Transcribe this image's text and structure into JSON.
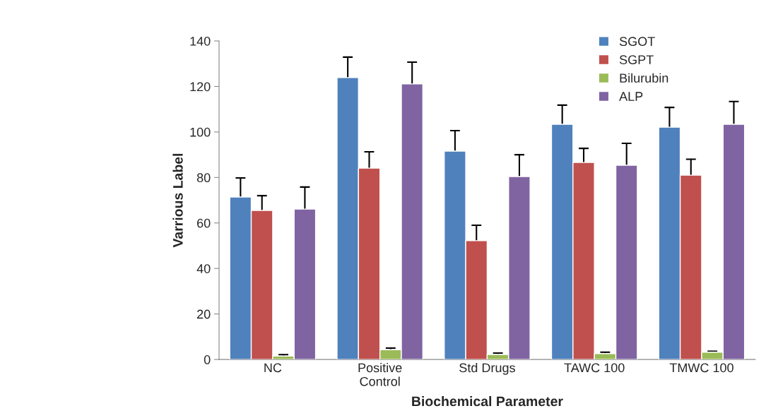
{
  "chart_data": {
    "type": "bar",
    "xlabel": "Biochemical Parameter",
    "ylabel": "Varrious Label",
    "categories": [
      "NC",
      "Positive\nControl",
      "Std Drugs",
      "TAWC 100",
      "TMWC 100"
    ],
    "series": [
      {
        "name": "SGOT",
        "color": "#4f81bd",
        "values": [
          71.4,
          123.9,
          91.6,
          103.4,
          102.1
        ],
        "errors": [
          8.4,
          9,
          9,
          8.4,
          8.7
        ]
      },
      {
        "name": "SGPT",
        "color": "#c0504d",
        "values": [
          65.5,
          84.1,
          52.2,
          86.6,
          81
        ],
        "errors": [
          6.5,
          7.2,
          6.8,
          6.2,
          7
        ]
      },
      {
        "name": "Bilurubin",
        "color": "#9bbb59",
        "values": [
          1.5,
          4.3,
          2.2,
          2.6,
          3.2
        ],
        "errors": [
          0.6,
          0.7,
          0.6,
          0.6,
          0.4
        ]
      },
      {
        "name": "ALP",
        "color": "#8064a2",
        "values": [
          66.1,
          121.1,
          80.4,
          85.4,
          103.4
        ],
        "errors": [
          9.7,
          9.6,
          9.6,
          9.6,
          10
        ]
      }
    ],
    "ylim": [
      0,
      140
    ],
    "yticks": [
      0,
      20,
      40,
      60,
      80,
      100,
      120,
      140
    ],
    "grid": false,
    "legend": "top right"
  }
}
